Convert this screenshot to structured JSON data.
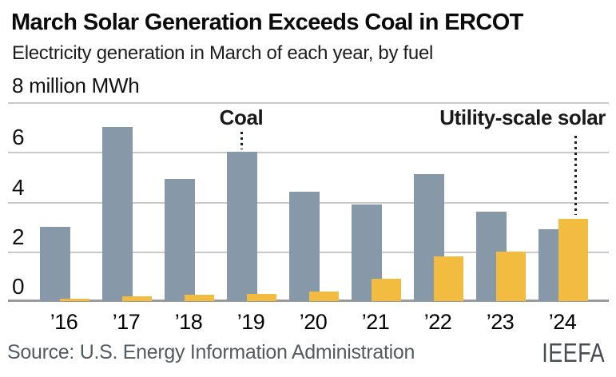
{
  "header": {
    "title": "March Solar Generation Exceeds Coal in ERCOT",
    "subtitle": "Electricity generation in March of each year, by fuel"
  },
  "chart_data": {
    "type": "bar",
    "unit_label": "8 million MWh",
    "categories": [
      "’16",
      "’17",
      "’18",
      "’19",
      "’20",
      "’21",
      "’22",
      "’23",
      "’24"
    ],
    "series": [
      {
        "name": "Coal",
        "color": "#8799A8",
        "values": [
          3.0,
          7.0,
          4.9,
          6.0,
          4.4,
          3.9,
          5.1,
          3.6,
          2.9
        ]
      },
      {
        "name": "Utility-scale solar",
        "color": "#F2BC40",
        "values": [
          0.1,
          0.2,
          0.25,
          0.3,
          0.4,
          0.9,
          1.8,
          2.0,
          3.3
        ]
      }
    ],
    "ylim": [
      0,
      8
    ],
    "yticks": [
      6,
      4,
      2,
      0
    ],
    "grid": true,
    "legend_position": "none",
    "annotations": [
      {
        "label": "Coal",
        "target_year": "’19",
        "target_series": "Coal"
      },
      {
        "label": "Utility-scale solar",
        "target_year": "’24",
        "target_series": "Utility-scale solar"
      }
    ]
  },
  "footer": {
    "source": "Source: U.S. Energy Information Administration",
    "logo": "IEEFA"
  }
}
